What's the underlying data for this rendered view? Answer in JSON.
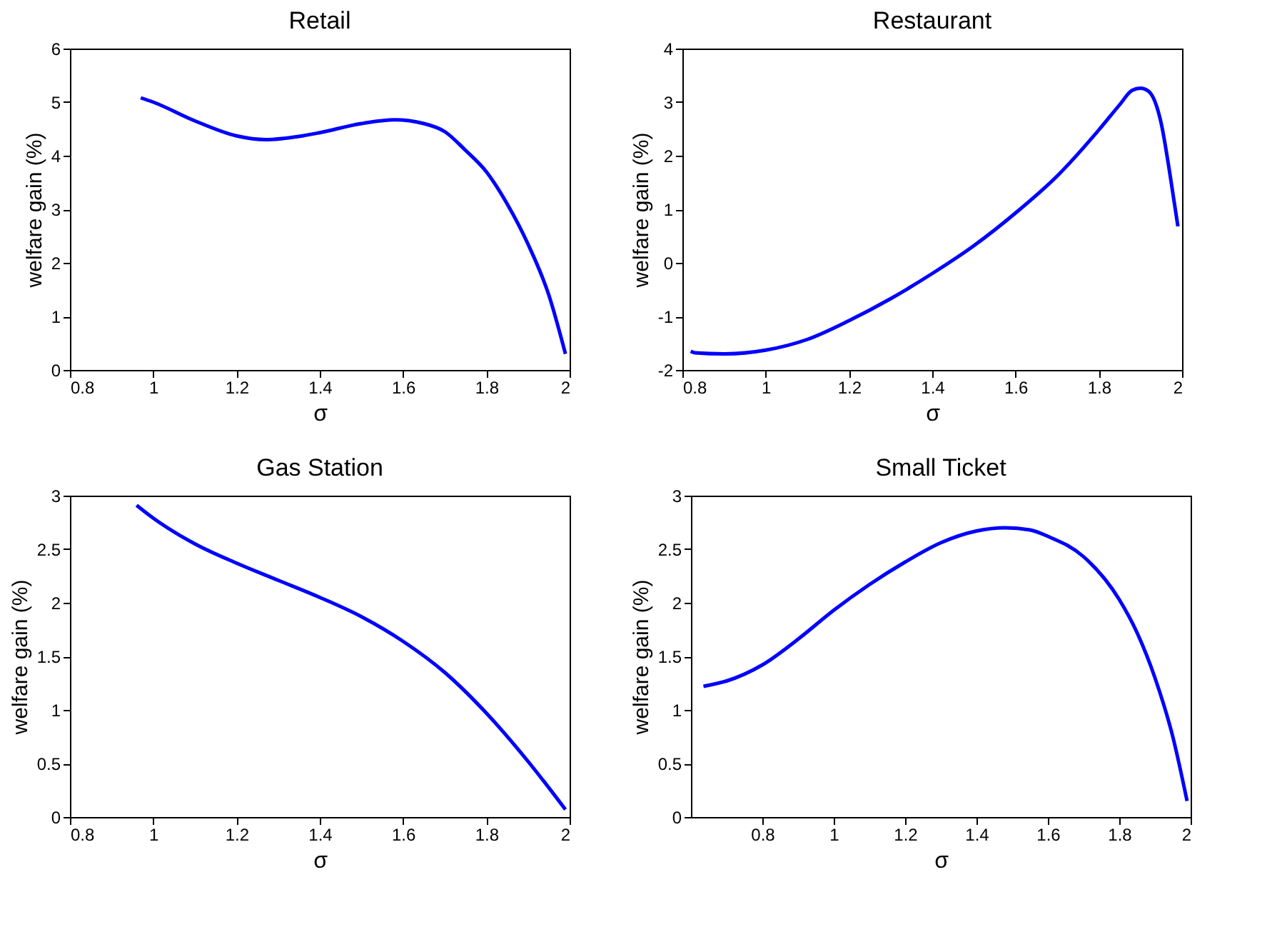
{
  "chart_data": [
    {
      "type": "line",
      "title": "Retail",
      "xlabel": "σ",
      "ylabel": "welfare gain (%)",
      "xlim": [
        0.8,
        2
      ],
      "xticks": [
        0.8,
        1,
        1.2,
        1.4,
        1.6,
        1.8,
        2
      ],
      "ylim": [
        0,
        6
      ],
      "yticks": [
        0,
        1,
        2,
        3,
        4,
        5,
        6
      ],
      "grid": false,
      "series": [
        {
          "color": "#0000ff",
          "x": [
            0.97,
            1.0,
            1.1,
            1.2,
            1.27,
            1.35,
            1.4,
            1.5,
            1.58,
            1.65,
            1.7,
            1.75,
            1.8,
            1.85,
            1.9,
            1.95,
            1.99
          ],
          "values": [
            5.08,
            5.0,
            4.65,
            4.37,
            4.3,
            4.36,
            4.43,
            4.6,
            4.67,
            4.6,
            4.45,
            4.1,
            3.7,
            3.1,
            2.35,
            1.4,
            0.3
          ]
        }
      ]
    },
    {
      "type": "line",
      "title": "Restaurant",
      "xlabel": "σ",
      "ylabel": "welfare gain (%)",
      "xlim": [
        0.8,
        2
      ],
      "xticks": [
        0.8,
        1,
        1.2,
        1.4,
        1.6,
        1.8,
        2
      ],
      "ylim": [
        -2,
        4
      ],
      "yticks": [
        -2,
        -1,
        0,
        1,
        2,
        3,
        4
      ],
      "grid": false,
      "series": [
        {
          "color": "#0000ff",
          "x": [
            0.82,
            0.83,
            0.9,
            1.0,
            1.1,
            1.2,
            1.3,
            1.4,
            1.5,
            1.6,
            1.7,
            1.8,
            1.85,
            1.88,
            1.9,
            1.92,
            1.95,
            1.97,
            1.99
          ],
          "values": [
            -1.65,
            -1.68,
            -1.7,
            -1.63,
            -1.43,
            -1.08,
            -0.67,
            -0.2,
            0.32,
            0.93,
            1.62,
            2.48,
            2.95,
            3.22,
            3.26,
            3.2,
            2.6,
            1.7,
            0.68
          ]
        }
      ]
    },
    {
      "type": "line",
      "title": "Gas Station",
      "xlabel": "σ",
      "ylabel": "welfare gain (%)",
      "xlim": [
        0.8,
        2
      ],
      "xticks": [
        0.8,
        1,
        1.2,
        1.4,
        1.6,
        1.8,
        2
      ],
      "ylim": [
        0,
        3
      ],
      "yticks": [
        0,
        0.5,
        1,
        1.5,
        2,
        2.5,
        3
      ],
      "grid": false,
      "series": [
        {
          "color": "#0000ff",
          "x": [
            0.96,
            1.0,
            1.1,
            1.2,
            1.3,
            1.4,
            1.5,
            1.6,
            1.7,
            1.8,
            1.9,
            1.99
          ],
          "values": [
            2.91,
            2.79,
            2.55,
            2.37,
            2.21,
            2.05,
            1.87,
            1.64,
            1.35,
            0.97,
            0.52,
            0.07
          ]
        }
      ]
    },
    {
      "type": "line",
      "title": "Small Ticket",
      "xlabel": "σ",
      "ylabel": "welfare gain (%)",
      "xlim": [
        0.6,
        2
      ],
      "xticks": [
        0.8,
        1,
        1.2,
        1.4,
        1.6,
        1.8,
        2
      ],
      "ylim": [
        0,
        3
      ],
      "yticks": [
        0,
        0.5,
        1,
        1.5,
        2,
        2.5,
        3
      ],
      "grid": false,
      "series": [
        {
          "color": "#0000ff",
          "x": [
            0.635,
            0.7,
            0.8,
            0.9,
            1.0,
            1.1,
            1.2,
            1.3,
            1.4,
            1.48,
            1.55,
            1.6,
            1.7,
            1.8,
            1.85,
            1.9,
            1.95,
            1.99
          ],
          "values": [
            1.22,
            1.27,
            1.42,
            1.66,
            1.93,
            2.17,
            2.38,
            2.56,
            2.67,
            2.7,
            2.68,
            2.62,
            2.43,
            2.03,
            1.72,
            1.3,
            0.75,
            0.15
          ]
        }
      ]
    }
  ]
}
